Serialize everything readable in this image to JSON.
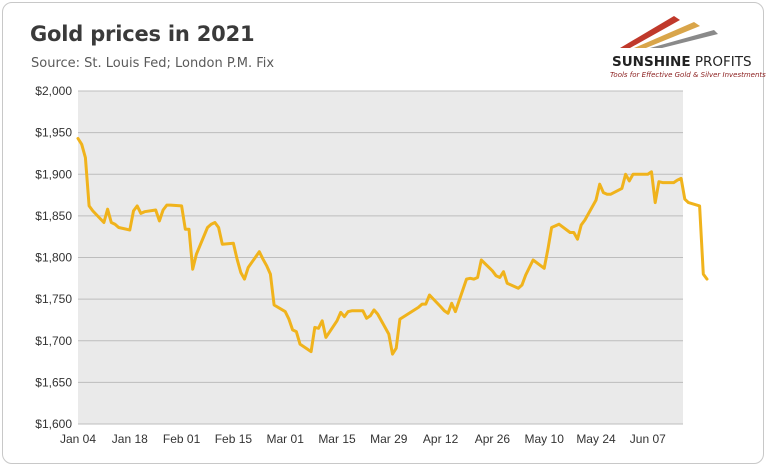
{
  "header": {
    "title": "Gold prices in 2021",
    "subtitle": "Source: St. Louis Fed; London P.M. Fix"
  },
  "logo": {
    "name_bold": "SUNSHINE",
    "name_thin": " PROFITS",
    "tagline": "Tools for Effective Gold & Silver Investments"
  },
  "colors": {
    "line": "#f0b31c",
    "plot_bg": "#eaeaea",
    "grid": "#bdbdbd"
  },
  "chart_data": {
    "type": "line",
    "title": "Gold prices in 2021",
    "subtitle": "Source: St. Louis Fed; London P.M. Fix",
    "ylim": [
      1600,
      2000
    ],
    "y_ticks": [
      1600,
      1650,
      1700,
      1750,
      1800,
      1850,
      1900,
      1950,
      2000
    ],
    "y_tick_labels": [
      "$1,600",
      "$1,650",
      "$1,700",
      "$1,750",
      "$1,800",
      "$1,850",
      "$1,900",
      "$1,950",
      "$2,000"
    ],
    "x_range": [
      "2021-01-04",
      "2021-06-18"
    ],
    "x_ticks": [
      "2021-01-04",
      "2021-01-18",
      "2021-02-01",
      "2021-02-15",
      "2021-03-01",
      "2021-03-15",
      "2021-03-29",
      "2021-04-12",
      "2021-04-26",
      "2021-05-10",
      "2021-05-24",
      "2021-06-07"
    ],
    "x_tick_labels": [
      "Jan 04",
      "Jan 18",
      "Feb 01",
      "Feb 15",
      "Mar 01",
      "Mar 15",
      "Mar 29",
      "Apr 12",
      "Apr 26",
      "May 10",
      "May 24",
      "Jun 07"
    ],
    "grid": true,
    "series": [
      {
        "points": [
          [
            "2021-01-04",
            1943
          ],
          [
            "2021-01-05",
            1936
          ],
          [
            "2021-01-06",
            1920
          ],
          [
            "2021-01-07",
            1862
          ],
          [
            "2021-01-08",
            1856
          ],
          [
            "2021-01-11",
            1842
          ],
          [
            "2021-01-12",
            1858
          ],
          [
            "2021-01-13",
            1842
          ],
          [
            "2021-01-14",
            1840
          ],
          [
            "2021-01-15",
            1836
          ],
          [
            "2021-01-18",
            1833
          ],
          [
            "2021-01-19",
            1856
          ],
          [
            "2021-01-20",
            1862
          ],
          [
            "2021-01-21",
            1853
          ],
          [
            "2021-01-22",
            1855
          ],
          [
            "2021-01-25",
            1857
          ],
          [
            "2021-01-26",
            1844
          ],
          [
            "2021-01-27",
            1857
          ],
          [
            "2021-01-28",
            1863
          ],
          [
            "2021-01-29",
            1863
          ],
          [
            "2021-02-01",
            1862
          ],
          [
            "2021-02-02",
            1834
          ],
          [
            "2021-02-03",
            1834
          ],
          [
            "2021-02-04",
            1786
          ],
          [
            "2021-02-05",
            1804
          ],
          [
            "2021-02-08",
            1836
          ],
          [
            "2021-02-09",
            1840
          ],
          [
            "2021-02-10",
            1842
          ],
          [
            "2021-02-11",
            1836
          ],
          [
            "2021-02-12",
            1816
          ],
          [
            "2021-02-15",
            1817
          ],
          [
            "2021-02-16",
            1798
          ],
          [
            "2021-02-17",
            1782
          ],
          [
            "2021-02-18",
            1774
          ],
          [
            "2021-02-19",
            1788
          ],
          [
            "2021-02-22",
            1807
          ],
          [
            "2021-02-23",
            1798
          ],
          [
            "2021-02-24",
            1790
          ],
          [
            "2021-02-25",
            1780
          ],
          [
            "2021-02-26",
            1743
          ],
          [
            "2021-03-01",
            1735
          ],
          [
            "2021-03-02",
            1726
          ],
          [
            "2021-03-03",
            1713
          ],
          [
            "2021-03-04",
            1711
          ],
          [
            "2021-03-05",
            1696
          ],
          [
            "2021-03-08",
            1687
          ],
          [
            "2021-03-09",
            1716
          ],
          [
            "2021-03-10",
            1715
          ],
          [
            "2021-03-11",
            1724
          ],
          [
            "2021-03-12",
            1704
          ],
          [
            "2021-03-15",
            1724
          ],
          [
            "2021-03-16",
            1734
          ],
          [
            "2021-03-17",
            1729
          ],
          [
            "2021-03-18",
            1735
          ],
          [
            "2021-03-19",
            1736
          ],
          [
            "2021-03-22",
            1736
          ],
          [
            "2021-03-23",
            1727
          ],
          [
            "2021-03-24",
            1730
          ],
          [
            "2021-03-25",
            1737
          ],
          [
            "2021-03-26",
            1732
          ],
          [
            "2021-03-29",
            1708
          ],
          [
            "2021-03-30",
            1684
          ],
          [
            "2021-03-31",
            1691
          ],
          [
            "2021-04-01",
            1726
          ],
          [
            "2021-04-06",
            1740
          ],
          [
            "2021-04-07",
            1744
          ],
          [
            "2021-04-08",
            1744
          ],
          [
            "2021-04-09",
            1755
          ],
          [
            "2021-04-12",
            1741
          ],
          [
            "2021-04-13",
            1736
          ],
          [
            "2021-04-14",
            1733
          ],
          [
            "2021-04-15",
            1745
          ],
          [
            "2021-04-16",
            1735
          ],
          [
            "2021-04-19",
            1774
          ],
          [
            "2021-04-20",
            1775
          ],
          [
            "2021-04-21",
            1774
          ],
          [
            "2021-04-22",
            1776
          ],
          [
            "2021-04-23",
            1797
          ],
          [
            "2021-04-26",
            1784
          ],
          [
            "2021-04-27",
            1778
          ],
          [
            "2021-04-28",
            1776
          ],
          [
            "2021-04-29",
            1783
          ],
          [
            "2021-04-30",
            1769
          ],
          [
            "2021-05-03",
            1763
          ],
          [
            "2021-05-04",
            1767
          ],
          [
            "2021-05-05",
            1779
          ],
          [
            "2021-05-06",
            1788
          ],
          [
            "2021-05-07",
            1797
          ],
          [
            "2021-05-10",
            1787
          ],
          [
            "2021-05-11",
            1810
          ],
          [
            "2021-05-12",
            1836
          ],
          [
            "2021-05-13",
            1838
          ],
          [
            "2021-05-14",
            1840
          ],
          [
            "2021-05-17",
            1830
          ],
          [
            "2021-05-18",
            1830
          ],
          [
            "2021-05-19",
            1822
          ],
          [
            "2021-05-20",
            1839
          ],
          [
            "2021-05-21",
            1845
          ],
          [
            "2021-05-24",
            1869
          ],
          [
            "2021-05-25",
            1888
          ],
          [
            "2021-05-26",
            1878
          ],
          [
            "2021-05-27",
            1876
          ],
          [
            "2021-05-28",
            1876
          ],
          [
            "2021-05-31",
            1883
          ],
          [
            "2021-06-01",
            1900
          ],
          [
            "2021-06-02",
            1892
          ],
          [
            "2021-06-03",
            1900
          ],
          [
            "2021-06-04",
            1900
          ],
          [
            "2021-06-07",
            1900
          ],
          [
            "2021-06-08",
            1903
          ],
          [
            "2021-06-09",
            1866
          ],
          [
            "2021-06-10",
            1891
          ],
          [
            "2021-06-11",
            1890
          ],
          [
            "2021-06-14",
            1890
          ],
          [
            "2021-06-15",
            1893
          ],
          [
            "2021-06-16",
            1895
          ],
          [
            "2021-06-17",
            1870
          ],
          [
            "2021-06-18",
            1866
          ],
          [
            "2021-06-21",
            1862
          ],
          [
            "2021-06-22",
            1780
          ],
          [
            "2021-06-23",
            1774
          ]
        ]
      }
    ]
  }
}
